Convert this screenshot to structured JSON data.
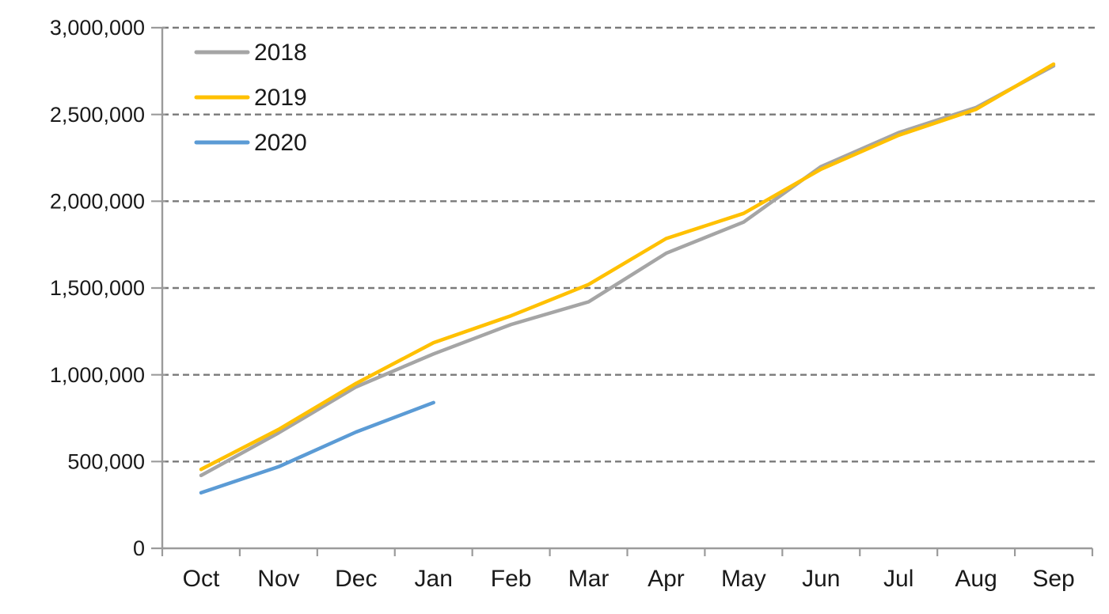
{
  "chart_data": {
    "type": "line",
    "title": "",
    "xlabel": "",
    "ylabel": "",
    "categories": [
      "Oct",
      "Nov",
      "Dec",
      "Jan",
      "Feb",
      "Mar",
      "Apr",
      "May",
      "Jun",
      "Jul",
      "Aug",
      "Sep"
    ],
    "series": [
      {
        "name": "2018",
        "color": "#A5A5A5",
        "values": [
          420000,
          665000,
          930000,
          1120000,
          1290000,
          1420000,
          1700000,
          1880000,
          2200000,
          2395000,
          2540000,
          2780000
        ]
      },
      {
        "name": "2019",
        "color": "#FFC000",
        "values": [
          455000,
          685000,
          950000,
          1185000,
          1340000,
          1520000,
          1785000,
          1930000,
          2185000,
          2380000,
          2530000,
          2790000
        ]
      },
      {
        "name": "2020",
        "color": "#5B9BD5",
        "values": [
          320000,
          470000,
          670000,
          840000,
          null,
          null,
          null,
          null,
          null,
          null,
          null,
          null
        ]
      }
    ],
    "ylim": [
      0,
      3000000
    ],
    "ytick_step": 500000,
    "ytick_labels": [
      "0",
      "500,000",
      "1,000,000",
      "1,500,000",
      "2,000,000",
      "2,500,000",
      "3,000,000"
    ],
    "grid": "horizontal-dashed",
    "legend": {
      "position": "top-left-inside",
      "entries": [
        "2018",
        "2019",
        "2020"
      ]
    },
    "colors": {
      "background": "#FFFFFF",
      "gridline": "#7A7A7A",
      "axis": "#9B9B9B",
      "text": "#1A1A1A"
    }
  }
}
